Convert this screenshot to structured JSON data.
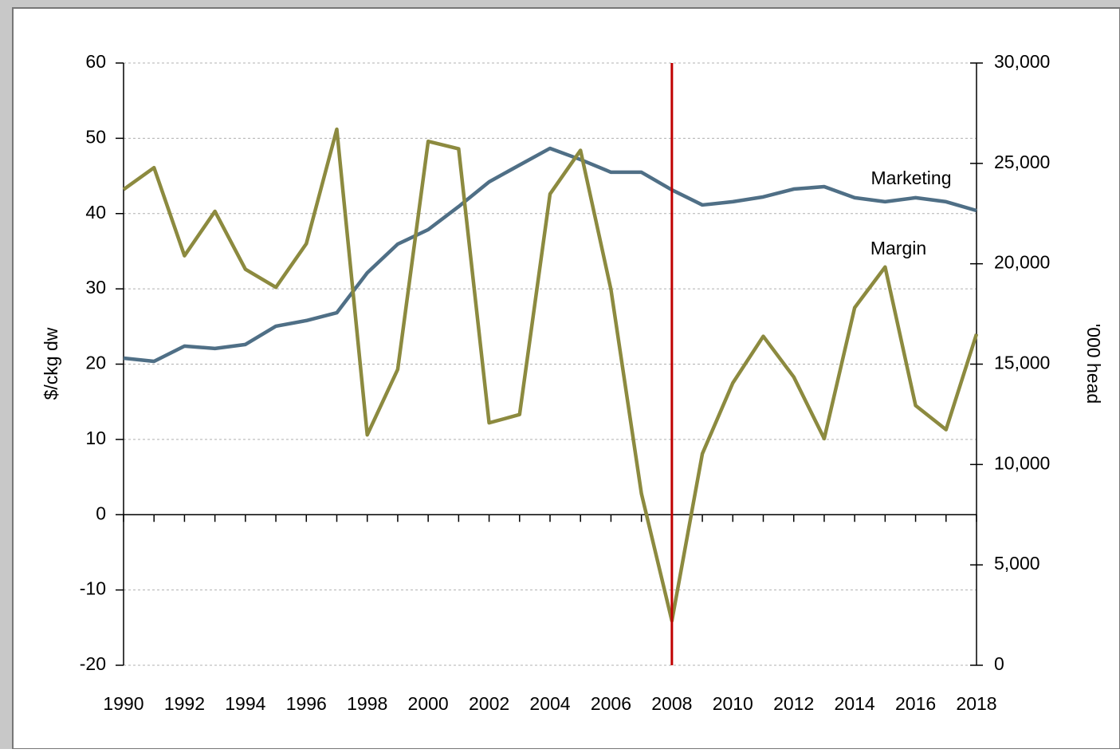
{
  "chart_data": {
    "type": "line",
    "y_label": "$/ckg dw",
    "y2_label": "'000 head",
    "x": [
      1990,
      1991,
      1992,
      1993,
      1994,
      1995,
      1996,
      1997,
      1998,
      1999,
      2000,
      2001,
      2002,
      2003,
      2004,
      2005,
      2006,
      2007,
      2008,
      2009,
      2010,
      2011,
      2012,
      2013,
      2014,
      2015,
      2016,
      2017,
      2018
    ],
    "xlim": [
      1990,
      2018
    ],
    "xticks": [
      1990,
      1992,
      1994,
      1996,
      1998,
      2000,
      2002,
      2004,
      2006,
      2008,
      2010,
      2012,
      2014,
      2016,
      2018
    ],
    "ylim": [
      -20,
      60
    ],
    "yticks": [
      -20,
      -10,
      0,
      10,
      20,
      30,
      40,
      50,
      60
    ],
    "y2lim": [
      0,
      30000
    ],
    "y2ticks": [
      {
        "value": 0,
        "label": "0"
      },
      {
        "value": 5000,
        "label": "5,000"
      },
      {
        "value": 10000,
        "label": "10,000"
      },
      {
        "value": 15000,
        "label": "15,000"
      },
      {
        "value": 20000,
        "label": "20,000"
      },
      {
        "value": 25000,
        "label": "25,000"
      },
      {
        "value": 30000,
        "label": "30,000"
      }
    ],
    "grid": true,
    "vline": {
      "x": 2008,
      "color": "#c00000"
    },
    "series": [
      {
        "name": "Marketing",
        "color": "#4f6f86",
        "axis": "y2",
        "values": [
          15300,
          15140,
          15900,
          15780,
          15980,
          16890,
          17170,
          17560,
          19550,
          20980,
          21700,
          22850,
          24080,
          24920,
          25750,
          25190,
          24560,
          24560,
          23680,
          22930,
          23090,
          23330,
          23720,
          23840,
          23290,
          23090,
          23290,
          23090,
          22650
        ]
      },
      {
        "name": "Margin",
        "color": "#8c8a3f",
        "values": [
          43.2,
          46.1,
          34.4,
          40.3,
          32.6,
          30.2,
          36.0,
          51.2,
          10.6,
          19.3,
          49.6,
          48.6,
          12.2,
          13.3,
          42.6,
          48.4,
          29.9,
          2.8,
          -14.1,
          8.1,
          17.5,
          23.7,
          18.3,
          10.1,
          27.5,
          32.9,
          14.5,
          11.3,
          24.0
        ]
      }
    ]
  }
}
